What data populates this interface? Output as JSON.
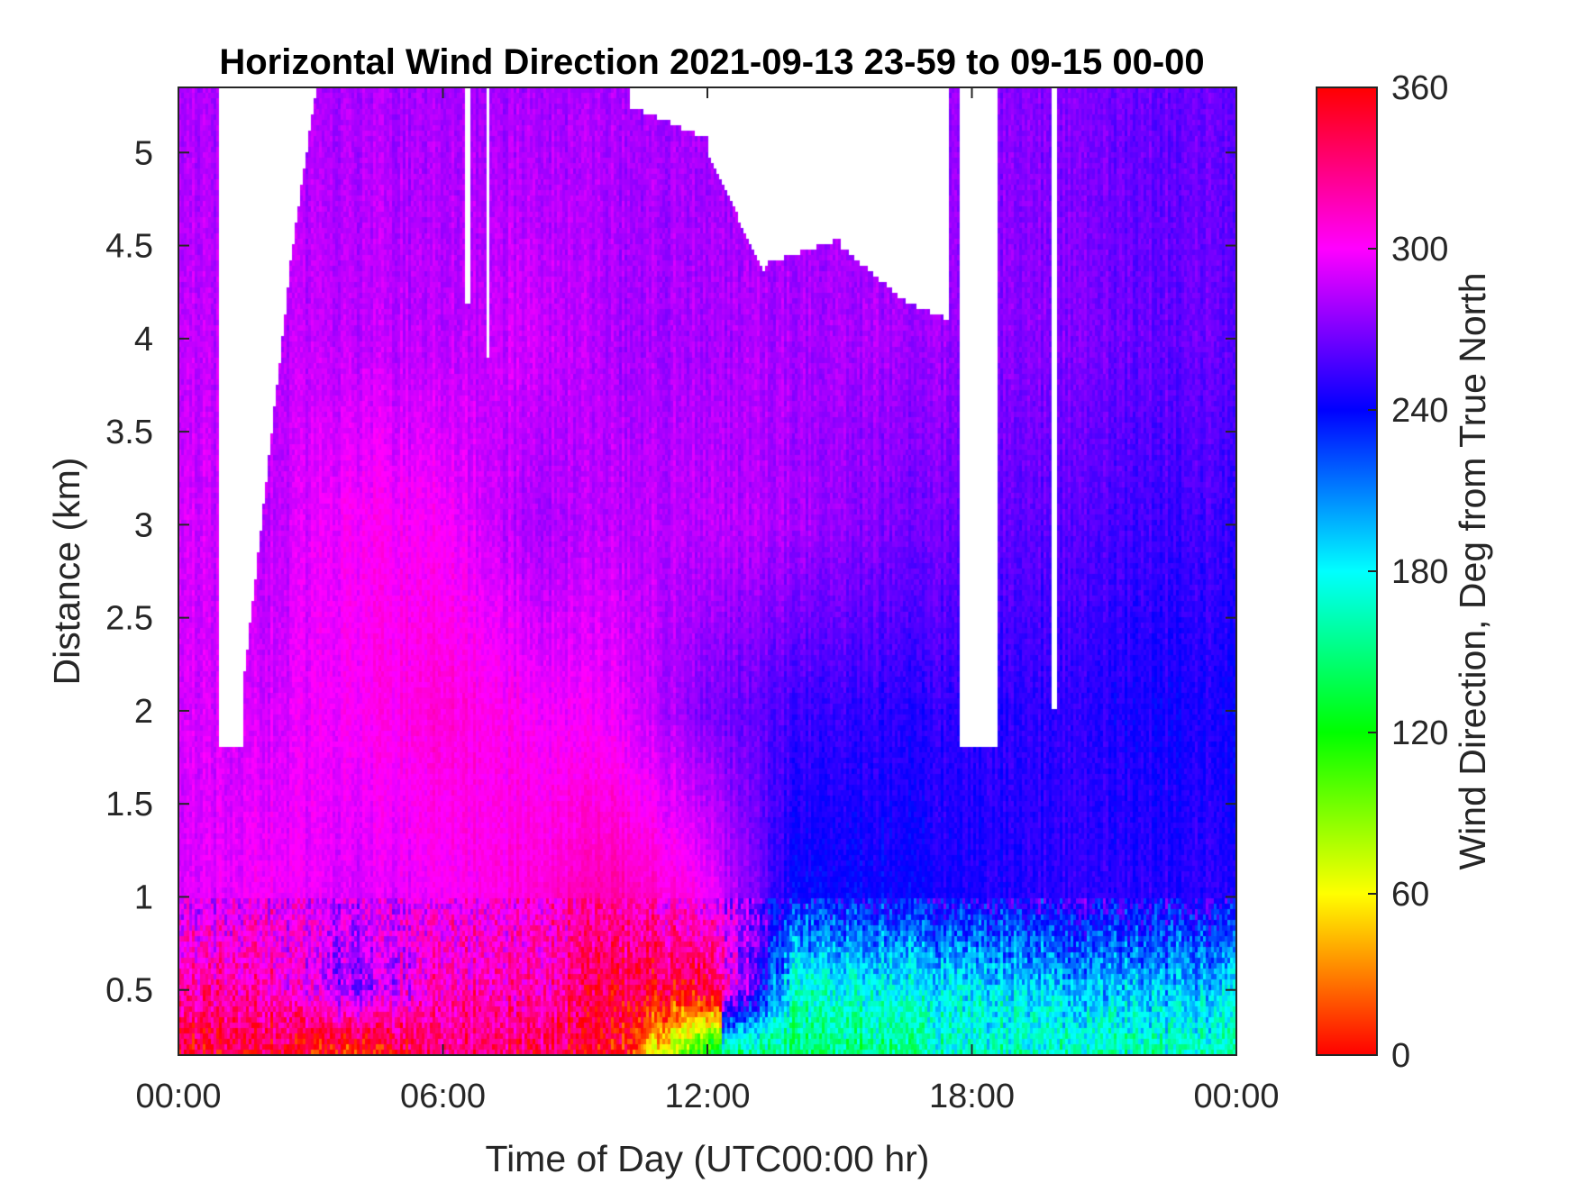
{
  "chart_data": {
    "type": "heatmap",
    "title": "Horizontal Wind Direction 2021-09-13 23-59 to 09-15 00-00",
    "xlabel": "Time of Day (UTC00:00 hr)",
    "ylabel": "Distance (km)",
    "x_ticks": [
      "00:00",
      "06:00",
      "12:00",
      "18:00",
      "00:00"
    ],
    "x_tick_values": [
      0,
      6,
      12,
      18,
      24
    ],
    "xlim": [
      0,
      24
    ],
    "y_ticks": [
      "0.5",
      "1",
      "1.5",
      "2",
      "2.5",
      "3",
      "3.5",
      "4",
      "4.5",
      "5"
    ],
    "y_tick_values": [
      0.5,
      1,
      1.5,
      2,
      2.5,
      3,
      3.5,
      4,
      4.5,
      5
    ],
    "ylim": [
      0.15,
      5.35
    ],
    "colorbar": {
      "label": "Wind Direction, Deg from True North",
      "range": [
        0,
        360
      ],
      "ticks": [
        "0",
        "60",
        "120",
        "180",
        "240",
        "300",
        "360"
      ],
      "tick_values": [
        0,
        60,
        120,
        180,
        240,
        300,
        360
      ],
      "colormap": "hsv-reversed (red 0/360, yellow 60, green 120, cyan 180, blue 240, magenta 300)"
    },
    "grid": false,
    "field_description": {
      "time_grid_hours": [
        0,
        2,
        4,
        6,
        8,
        10,
        12,
        14,
        16,
        18,
        20,
        22,
        24
      ],
      "height_grid_km": [
        0.15,
        0.5,
        1.0,
        2.0,
        3.0,
        4.0,
        5.35
      ],
      "direction_deg": [
        [
          350,
          345,
          20,
          330,
          340,
          355,
          140,
          150,
          150,
          170,
          160,
          165,
          165
        ],
        [
          320,
          320,
          270,
          320,
          315,
          345,
          350,
          170,
          175,
          180,
          190,
          195,
          195
        ],
        [
          290,
          300,
          290,
          300,
          310,
          320,
          300,
          240,
          240,
          245,
          250,
          250,
          250
        ],
        [
          290,
          290,
          300,
          310,
          300,
          295,
          270,
          255,
          250,
          250,
          250,
          245,
          245
        ],
        [
          290,
          285,
          300,
          300,
          280,
          285,
          285,
          280,
          270,
          265,
          260,
          255,
          255
        ],
        [
          285,
          285,
          285,
          285,
          290,
          280,
          280,
          280,
          280,
          275,
          270,
          265,
          265
        ],
        [
          280,
          280,
          280,
          280,
          280,
          280,
          280,
          280,
          280,
          275,
          270,
          265,
          265
        ]
      ]
    }
  }
}
